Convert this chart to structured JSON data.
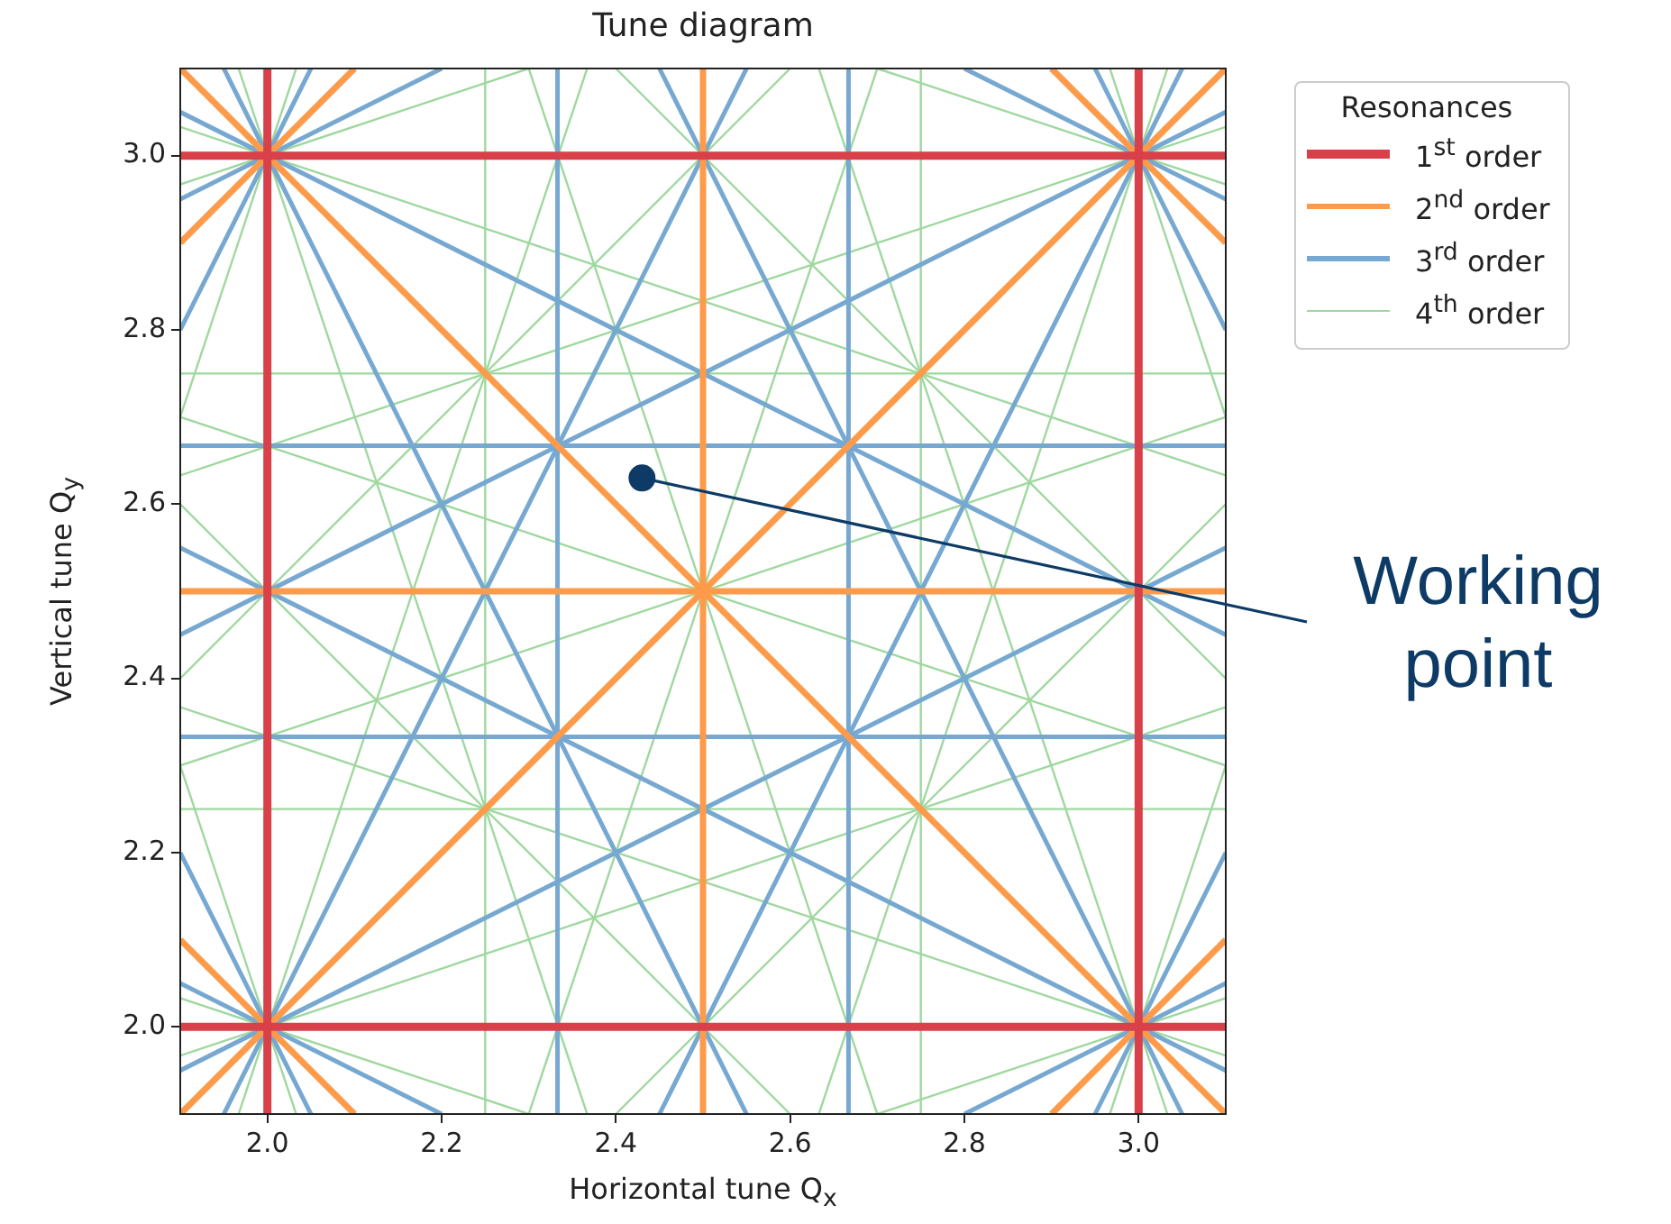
{
  "chart_data": {
    "type": "line",
    "title": "Tune diagram",
    "xlabel": "Horizontal tune Q$_{x}$",
    "ylabel": "Vertical tune Q$_{y}$",
    "legend_title": "Resonances",
    "legend": "top right",
    "marker": "none",
    "line_style": "solid",
    "xlim": [
      1.9,
      3.1
    ],
    "ylim": [
      1.9,
      3.1
    ],
    "xticks": [
      {
        "value": 2,
        "label": "2.0"
      },
      2.2,
      2.4,
      2.6,
      2.8,
      {
        "value": 3,
        "label": "3.0"
      }
    ],
    "yticks": [
      {
        "value": 2,
        "label": "2.0"
      },
      2.2,
      2.4,
      2.6,
      2.8,
      {
        "value": 3,
        "label": "3.0"
      }
    ],
    "annotations": [
      {
        "text": "Working point",
        "x": 2.43,
        "y": 2.63
      }
    ],
    "series": [
      {
        "name": "1$^{st}$ order",
        "color": "#d8414a",
        "x": [
          2,
          2
        ],
        "values": [
          1.9,
          3.1
        ]
      },
      {
        "color": "#d8414a",
        "x": [
          3,
          3
        ],
        "values": [
          1.9,
          3.1
        ]
      },
      {
        "color": "#d8414a",
        "x": [
          1.9,
          3.1
        ],
        "values": [
          2,
          2
        ]
      },
      {
        "color": "#d8414a",
        "x": [
          1.9,
          3.1
        ],
        "values": [
          3,
          3
        ]
      },
      {
        "name": "2$^{nd}$ order",
        "color": "#fd9b4b",
        "x": [
          2.5,
          2.5
        ],
        "values": [
          1.9,
          3.1
        ]
      },
      {
        "color": "#fd9b4b",
        "x": [
          1.9,
          3.1
        ],
        "values": [
          2.5,
          2.5
        ]
      },
      {
        "color": "#fd9b4b",
        "x": [
          1.9,
          2.1
        ],
        "values": [
          2.1,
          1.9
        ]
      },
      {
        "color": "#fd9b4b",
        "x": [
          1.9,
          3.1
        ],
        "values": [
          3.1,
          1.9
        ]
      },
      {
        "color": "#fd9b4b",
        "x": [
          2.9,
          3.1
        ],
        "values": [
          3.1,
          2.9
        ]
      },
      {
        "color": "#fd9b4b",
        "x": [
          1.9,
          3.1
        ],
        "values": [
          1.9,
          3.1
        ]
      },
      {
        "color": "#fd9b4b",
        "x": [
          1.9,
          2.1
        ],
        "values": [
          2.9,
          3.1
        ]
      },
      {
        "color": "#fd9b4b",
        "x": [
          2.9,
          3.1
        ],
        "values": [
          1.9,
          2.1
        ]
      },
      {
        "name": "3$^{rd}$ order",
        "color": "#76a8d1",
        "x": [
          2.333,
          2.333
        ],
        "values": [
          1.9,
          3.1
        ]
      },
      {
        "color": "#76a8d1",
        "x": [
          2.667,
          2.667
        ],
        "values": [
          1.9,
          3.1
        ]
      },
      {
        "color": "#76a8d1",
        "x": [
          1.9,
          3.1
        ],
        "values": [
          2.333,
          2.333
        ]
      },
      {
        "color": "#76a8d1",
        "x": [
          1.9,
          3.1
        ],
        "values": [
          2.667,
          2.667
        ]
      },
      {
        "color": "#76a8d1",
        "x": [
          1.9,
          2.05
        ],
        "values": [
          2.2,
          1.9
        ]
      },
      {
        "color": "#76a8d1",
        "x": [
          1.95,
          2.55
        ],
        "values": [
          3.1,
          1.9
        ]
      },
      {
        "color": "#76a8d1",
        "x": [
          2.45,
          3.05
        ],
        "values": [
          3.1,
          1.9
        ]
      },
      {
        "color": "#76a8d1",
        "x": [
          2.95,
          3.1
        ],
        "values": [
          3.1,
          2.8
        ]
      },
      {
        "color": "#76a8d1",
        "x": [
          1.9,
          2.05
        ],
        "values": [
          2.8,
          3.1
        ]
      },
      {
        "color": "#76a8d1",
        "x": [
          1.95,
          2.55
        ],
        "values": [
          1.9,
          3.1
        ]
      },
      {
        "color": "#76a8d1",
        "x": [
          2.45,
          3.05
        ],
        "values": [
          1.9,
          3.1
        ]
      },
      {
        "color": "#76a8d1",
        "x": [
          2.95,
          3.1
        ],
        "values": [
          1.9,
          2.2
        ]
      },
      {
        "color": "#76a8d1",
        "x": [
          1.9,
          2.2
        ],
        "values": [
          2.05,
          1.9
        ]
      },
      {
        "color": "#76a8d1",
        "x": [
          1.9,
          3.1
        ],
        "values": [
          2.55,
          1.95
        ]
      },
      {
        "color": "#76a8d1",
        "x": [
          1.9,
          3.1
        ],
        "values": [
          3.05,
          2.45
        ]
      },
      {
        "color": "#76a8d1",
        "x": [
          2.8,
          3.1
        ],
        "values": [
          3.1,
          2.95
        ]
      },
      {
        "color": "#76a8d1",
        "x": [
          2.8,
          3.1
        ],
        "values": [
          1.9,
          2.05
        ]
      },
      {
        "color": "#76a8d1",
        "x": [
          1.9,
          3.1
        ],
        "values": [
          1.95,
          2.55
        ]
      },
      {
        "color": "#76a8d1",
        "x": [
          1.9,
          3.1
        ],
        "values": [
          2.45,
          3.05
        ]
      },
      {
        "color": "#76a8d1",
        "x": [
          1.9,
          2.2
        ],
        "values": [
          2.95,
          3.1
        ]
      },
      {
        "name": "4$^{th}$ order",
        "color": "#9fd89f",
        "x": [
          2.25,
          2.25
        ],
        "values": [
          1.9,
          3.1
        ]
      },
      {
        "color": "#9fd89f",
        "x": [
          2.75,
          2.75
        ],
        "values": [
          1.9,
          3.1
        ]
      },
      {
        "color": "#9fd89f",
        "x": [
          1.9,
          3.1
        ],
        "values": [
          2.25,
          2.25
        ]
      },
      {
        "color": "#9fd89f",
        "x": [
          1.9,
          3.1
        ],
        "values": [
          2.75,
          2.75
        ]
      },
      {
        "color": "#9fd89f",
        "x": [
          1.9,
          2.6
        ],
        "values": [
          2.6,
          1.9
        ]
      },
      {
        "color": "#9fd89f",
        "x": [
          2.4,
          3.1
        ],
        "values": [
          3.1,
          2.4
        ]
      },
      {
        "color": "#9fd89f",
        "x": [
          1.9,
          2.6
        ],
        "values": [
          2.4,
          3.1
        ]
      },
      {
        "color": "#9fd89f",
        "x": [
          2.4,
          3.1
        ],
        "values": [
          1.9,
          2.6
        ]
      },
      {
        "color": "#9fd89f",
        "x": [
          1.9,
          2.033
        ],
        "values": [
          2.3,
          1.9
        ]
      },
      {
        "color": "#9fd89f",
        "x": [
          1.967,
          2.367
        ],
        "values": [
          3.1,
          1.9
        ]
      },
      {
        "color": "#9fd89f",
        "x": [
          2.3,
          2.7
        ],
        "values": [
          3.1,
          1.9
        ]
      },
      {
        "color": "#9fd89f",
        "x": [
          2.633,
          3.033
        ],
        "values": [
          3.1,
          1.9
        ]
      },
      {
        "color": "#9fd89f",
        "x": [
          2.967,
          3.1
        ],
        "values": [
          3.1,
          2.7
        ]
      },
      {
        "color": "#9fd89f",
        "x": [
          1.9,
          2.033
        ],
        "values": [
          2.7,
          3.1
        ]
      },
      {
        "color": "#9fd89f",
        "x": [
          1.967,
          2.367
        ],
        "values": [
          1.9,
          3.1
        ]
      },
      {
        "color": "#9fd89f",
        "x": [
          2.3,
          2.7
        ],
        "values": [
          1.9,
          3.1
        ]
      },
      {
        "color": "#9fd89f",
        "x": [
          2.633,
          3.033
        ],
        "values": [
          1.9,
          3.1
        ]
      },
      {
        "color": "#9fd89f",
        "x": [
          2.967,
          3.1
        ],
        "values": [
          1.9,
          2.3
        ]
      },
      {
        "color": "#9fd89f",
        "x": [
          1.9,
          2.3
        ],
        "values": [
          2.033,
          1.9
        ]
      },
      {
        "color": "#9fd89f",
        "x": [
          1.9,
          3.1
        ],
        "values": [
          2.367,
          1.967
        ]
      },
      {
        "color": "#9fd89f",
        "x": [
          1.9,
          3.1
        ],
        "values": [
          2.7,
          2.3
        ]
      },
      {
        "color": "#9fd89f",
        "x": [
          1.9,
          3.1
        ],
        "values": [
          3.033,
          2.633
        ]
      },
      {
        "color": "#9fd89f",
        "x": [
          2.7,
          3.1
        ],
        "values": [
          3.1,
          2.967
        ]
      },
      {
        "color": "#9fd89f",
        "x": [
          2.7,
          3.1
        ],
        "values": [
          1.9,
          2.033
        ]
      },
      {
        "color": "#9fd89f",
        "x": [
          1.9,
          3.1
        ],
        "values": [
          1.967,
          2.367
        ]
      },
      {
        "color": "#9fd89f",
        "x": [
          1.9,
          3.1
        ],
        "values": [
          2.3,
          2.7
        ]
      },
      {
        "color": "#9fd89f",
        "x": [
          1.9,
          3.1
        ],
        "values": [
          2.633,
          3.033
        ]
      },
      {
        "color": "#9fd89f",
        "x": [
          1.9,
          2.3
        ],
        "values": [
          2.967,
          3.1
        ]
      },
      {
        "type": "scatter",
        "marker": "circle",
        "color": "#0d3b66",
        "x": [
          2.43
        ],
        "values": [
          2.63
        ]
      }
    ]
  }
}
